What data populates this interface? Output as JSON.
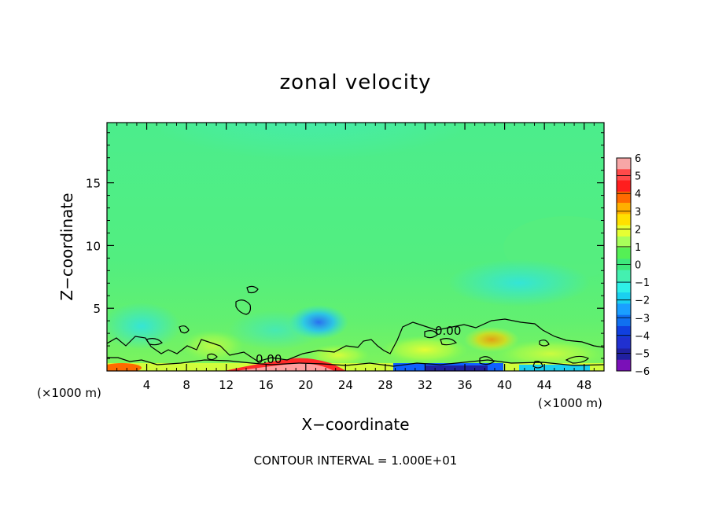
{
  "chart_data": {
    "type": "heatmap",
    "title": "zonal velocity",
    "xlabel": "X−coordinate",
    "ylabel": "Z−coordinate",
    "x_unit_left": "(×1000 m)",
    "x_unit_right": "(×1000 m)",
    "xlim": [
      0,
      50
    ],
    "ylim": [
      0,
      19.8
    ],
    "x_ticks": [
      4,
      8,
      12,
      16,
      20,
      24,
      28,
      32,
      36,
      40,
      44,
      48
    ],
    "y_ticks": [
      5,
      10,
      15
    ],
    "colorbar": {
      "levels": [
        6,
        5,
        4,
        3,
        2,
        1,
        0,
        -1,
        -2,
        -3,
        -4,
        -5,
        -6
      ],
      "labels": [
        "6",
        "5",
        "4",
        "3",
        "2",
        "1",
        "0",
        "−1",
        "−2",
        "−3",
        "−4",
        "−5",
        "−6"
      ],
      "colors": [
        "#f7a6a6",
        "#ff4a4a",
        "#ff1e1e",
        "#ff6a00",
        "#ffb000",
        "#ffe000",
        "#e6ff33",
        "#a8ff5a",
        "#55f055",
        "#3ee87c",
        "#44f0b0",
        "#2ef0e8",
        "#1ad0f0",
        "#1a9fff",
        "#1070f0",
        "#1040e0",
        "#2030d0",
        "#2020a0",
        "#7a10b8"
      ]
    },
    "contour_labels": [
      "0.00",
      "0.00"
    ],
    "contour_interval_text": "CONTOUR INTERVAL =  1.000E+01"
  }
}
